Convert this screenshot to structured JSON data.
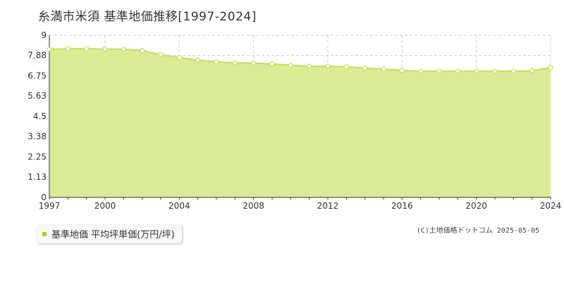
{
  "chart_data": {
    "type": "area",
    "title": "糸満市米須 基準地価推移[1997-2024]",
    "x": [
      1997,
      1998,
      1999,
      2000,
      2001,
      2002,
      2003,
      2004,
      2005,
      2006,
      2007,
      2008,
      2009,
      2010,
      2011,
      2012,
      2013,
      2014,
      2015,
      2016,
      2017,
      2018,
      2019,
      2020,
      2021,
      2022,
      2023,
      2024
    ],
    "series": [
      {
        "name": "基準地価 平均坪単価(万円/坪)",
        "values": [
          8.22,
          8.25,
          8.25,
          8.23,
          8.23,
          8.15,
          7.93,
          7.76,
          7.62,
          7.52,
          7.47,
          7.45,
          7.41,
          7.33,
          7.28,
          7.28,
          7.25,
          7.18,
          7.12,
          7.05,
          7.0,
          7.0,
          7.0,
          7.0,
          7.0,
          7.0,
          7.03,
          7.21
        ]
      }
    ],
    "x_ticks": [
      "1997",
      "2000",
      "2004",
      "2008",
      "2012",
      "2016",
      "2020",
      "2024"
    ],
    "y_ticks": [
      "0",
      "1.13",
      "2.25",
      "3.38",
      "4.5",
      "5.63",
      "6.75",
      "7.88",
      "9"
    ],
    "ylim": [
      0,
      9
    ],
    "xlim": [
      1997,
      2024
    ],
    "grid": true,
    "legend_position": "bottom-left",
    "colors": {
      "fill": "#dbeb95",
      "line": "#c5dd5a",
      "marker_fill": "#ffffff",
      "marker_stroke": "#c5dd5a",
      "grid": "#cccccc",
      "legend_swatch": "#a9cc34"
    }
  },
  "legend_label": "基準地価 平均坪単価(万円/坪)",
  "copyright": "(C)土地価格ドットコム 2025-05-05"
}
